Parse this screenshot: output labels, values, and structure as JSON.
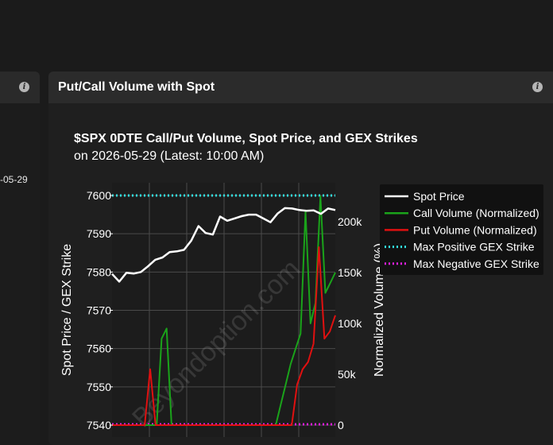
{
  "left_panel": {
    "date_fragment": "-05-29"
  },
  "panel": {
    "title": "Put/Call Volume with Spot",
    "info_icon": "info-icon"
  },
  "chart_data": {
    "type": "line",
    "title": "$SPX 0DTE Call/Put Volume, Spot Price, and GEX Strikes",
    "subtitle": "on 2026-05-29 (Latest: 10:00 AM)",
    "ylabel": "Spot Price / GEX Strike",
    "y2label": "Normalized Volume (%)",
    "ylim": [
      7540,
      7600
    ],
    "y_ticks": [
      "7600",
      "7590",
      "7580",
      "7570",
      "7560",
      "7550",
      "7540"
    ],
    "y2lim": [
      0,
      225000
    ],
    "y2_ticks": [
      "200k",
      "150k",
      "100k",
      "50k",
      "0"
    ],
    "grid": true,
    "legend_placement": "top-right",
    "watermark": "Beyondoption.com",
    "colors": {
      "spot": "#ffffff",
      "call": "#1aa31a",
      "put": "#e01010",
      "max_pos": "#33e0e0",
      "max_neg": "#e020e0"
    },
    "series": [
      {
        "name": "Spot Price",
        "axis": "left",
        "values": [
          7579.5,
          7577.5,
          7579.8,
          7579.6,
          7580,
          7581.5,
          7583.2,
          7583.8,
          7585.2,
          7585.4,
          7585.8,
          7588.2,
          7592,
          7590.2,
          7589.8,
          7594.5,
          7593.4,
          7594,
          7594.6,
          7595,
          7595,
          7594,
          7593,
          7595.3,
          7596.7,
          7596.6,
          7596.2,
          7596,
          7596.1,
          7595.2,
          7596.6,
          7596.2
        ]
      },
      {
        "name": "Call Volume (Normalized)",
        "axis": "right",
        "values": [
          0,
          0,
          0,
          0,
          0,
          0,
          0,
          0,
          0,
          0,
          85000,
          95000,
          0,
          0,
          0,
          0,
          0,
          0,
          0,
          0,
          0,
          0,
          0,
          0,
          0,
          0,
          0,
          0,
          0,
          0,
          0,
          0,
          0,
          0,
          20000,
          40000,
          60000,
          75000,
          90000,
          210000,
          100000,
          120000,
          225000,
          130000,
          140000,
          150000
        ]
      },
      {
        "name": "Put Volume (Normalized)",
        "axis": "right",
        "values": [
          0,
          0,
          0,
          0,
          0,
          0,
          0,
          55000,
          0,
          0,
          0,
          0,
          0,
          0,
          0,
          0,
          0,
          0,
          0,
          0,
          0,
          0,
          0,
          0,
          0,
          0,
          0,
          0,
          0,
          0,
          0,
          0,
          0,
          0,
          40000,
          55000,
          62000,
          80000,
          175000,
          85000,
          92000,
          108000
        ]
      },
      {
        "name": "Max Positive GEX Strike",
        "axis": "left",
        "values": [
          7600,
          7600
        ]
      },
      {
        "name": "Max Negative GEX Strike",
        "axis": "left",
        "values": [
          7540,
          7540
        ]
      }
    ]
  }
}
